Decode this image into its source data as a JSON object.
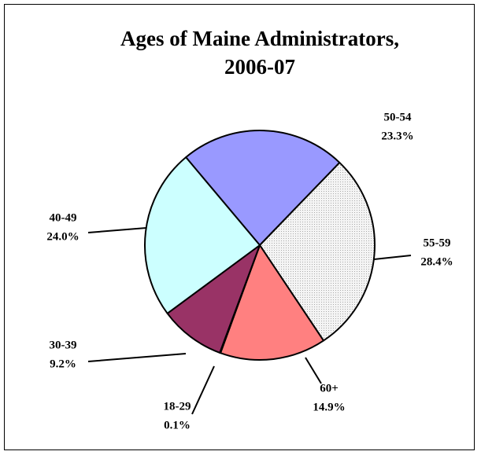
{
  "chart_data": {
    "type": "pie",
    "title": [
      "Ages of Maine Administrators,",
      "2006-07"
    ],
    "categories": [
      "50-54",
      "55-59",
      "60+",
      "18-29",
      "30-39",
      "40-49"
    ],
    "values": [
      23.3,
      28.4,
      14.9,
      0.1,
      9.2,
      24.0
    ],
    "value_labels": [
      "23.3%",
      "28.4%",
      "14.9%",
      "0.1%",
      "9.2%",
      "24.0%"
    ],
    "colors": [
      "#9999ff",
      "#eeeeee",
      "#ff8080",
      "#ffffff",
      "#993366",
      "#ccffff"
    ]
  }
}
